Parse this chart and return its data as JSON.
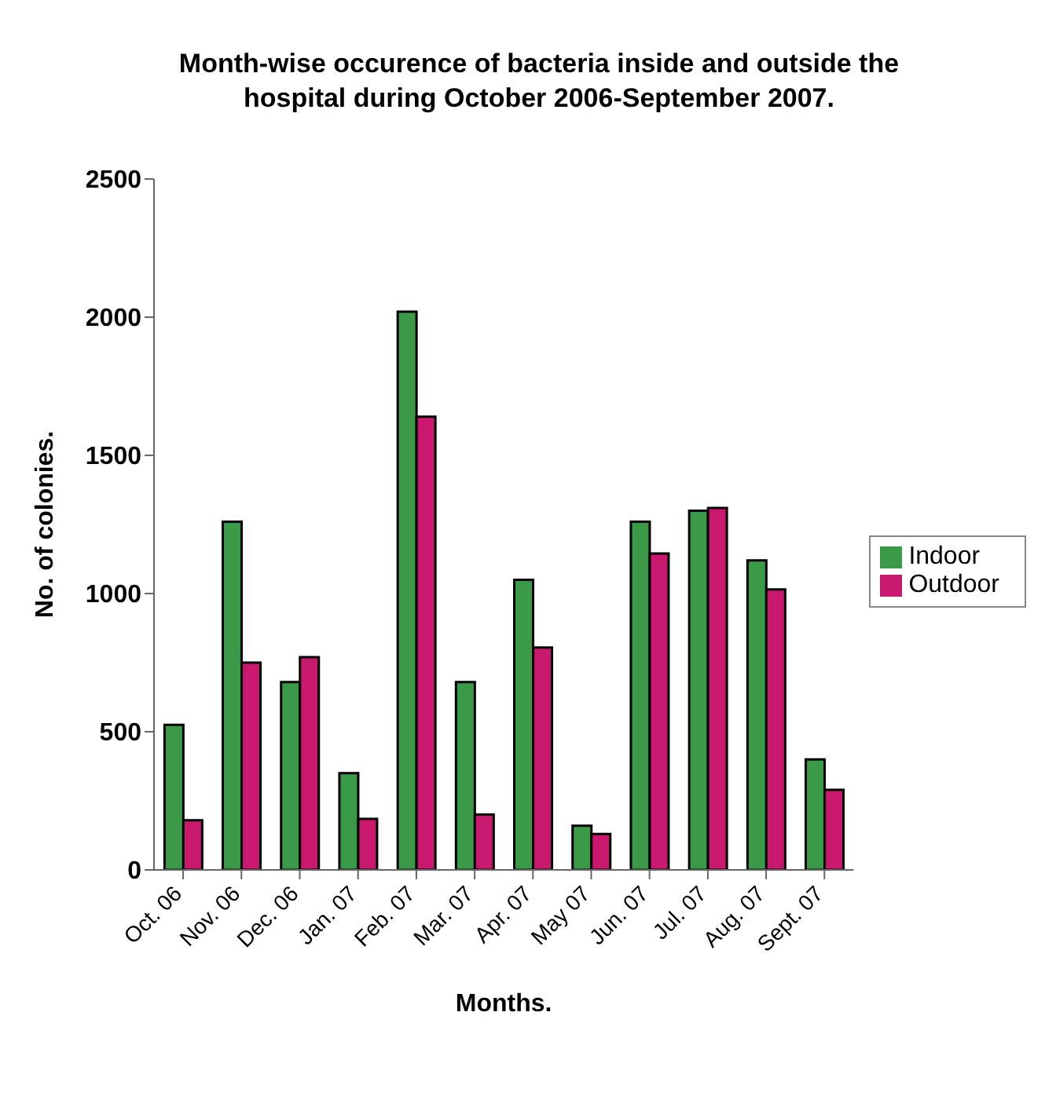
{
  "chart_data": {
    "type": "bar",
    "title": "Month-wise occurence of bacteria inside and outside the hospital during October 2006-September 2007.",
    "xlabel": "Months.",
    "ylabel": "No. of colonies.",
    "categories": [
      "Oct. 06",
      "Nov. 06",
      "Dec. 06",
      "Jan. 07",
      "Feb. 07",
      "Mar. 07",
      "Apr. 07",
      "May 07",
      "Jun. 07",
      "Jul. 07",
      "Aug. 07",
      "Sept. 07"
    ],
    "series": [
      {
        "name": "Indoor",
        "color": "#3a9a48",
        "values": [
          525,
          1260,
          680,
          350,
          2020,
          680,
          1050,
          160,
          1260,
          1300,
          1120,
          400
        ]
      },
      {
        "name": "Outdoor",
        "color": "#c8196e",
        "values": [
          180,
          750,
          770,
          185,
          1640,
          200,
          805,
          130,
          1145,
          1310,
          1015,
          290
        ]
      }
    ],
    "ylim": [
      0,
      2500
    ],
    "yticks": [
      0,
      500,
      1000,
      1500,
      2000,
      2500
    ],
    "grid": false,
    "legend": "right"
  }
}
